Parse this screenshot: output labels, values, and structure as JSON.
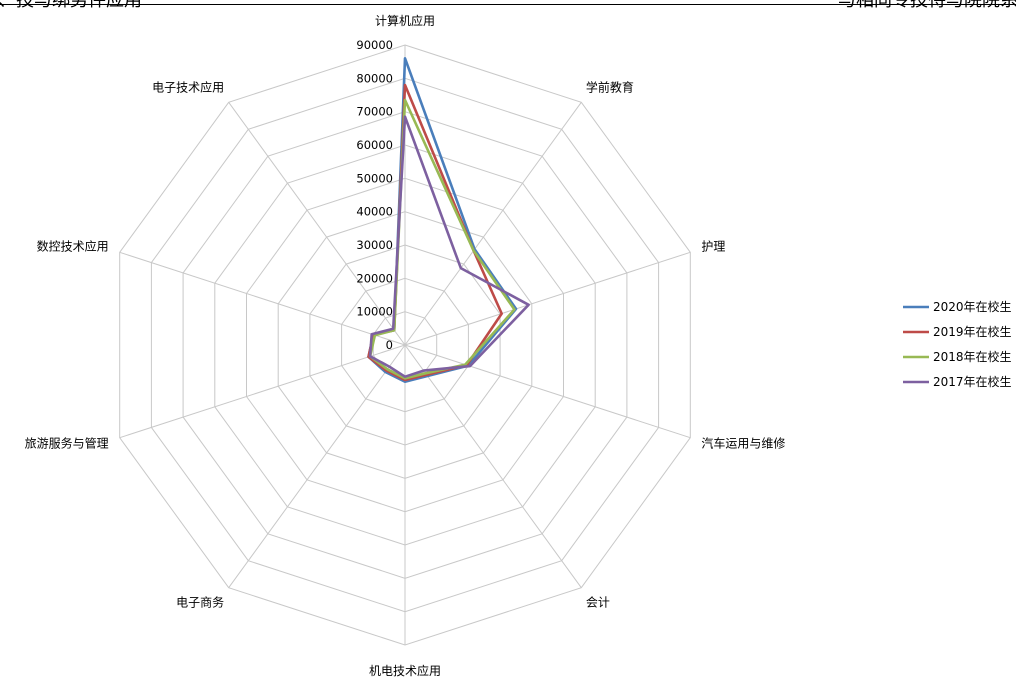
{
  "header": {
    "left_text": "、技与绑劣件应用",
    "right_text": "与相同专技待与院院系"
  },
  "chart_data": {
    "type": "radar",
    "categories": [
      "计算机应用",
      "学前教育",
      "护理",
      "汽车运用与维修",
      "会计",
      "机电技术应用",
      "电子商务",
      "旅游服务与管理",
      "数控技术应用",
      "电子技术应用"
    ],
    "radial_ticks": [
      "0",
      "10000",
      "20000",
      "30000",
      "40000",
      "50000",
      "60000",
      "70000",
      "80000",
      "90000"
    ],
    "rlim": [
      0,
      90000
    ],
    "legend_position": "right",
    "series": [
      {
        "name": "2020年在校生",
        "color": "#4a7ebb",
        "values": [
          86000,
          35500,
          35000,
          20000,
          11500,
          11000,
          10000,
          11500,
          10000,
          5500
        ]
      },
      {
        "name": "2019年在校生",
        "color": "#be4b48",
        "values": [
          78000,
          35000,
          30500,
          19500,
          11000,
          10500,
          9500,
          11500,
          10000,
          5500
        ]
      },
      {
        "name": "2018年在校生",
        "color": "#98b954",
        "values": [
          73500,
          35000,
          34500,
          19000,
          10500,
          10000,
          9000,
          11000,
          9500,
          5500
        ]
      },
      {
        "name": "2017年在校生",
        "color": "#7d60a0",
        "values": [
          68500,
          28500,
          39000,
          20500,
          9500,
          9500,
          8000,
          11000,
          10500,
          6000
        ]
      }
    ]
  }
}
